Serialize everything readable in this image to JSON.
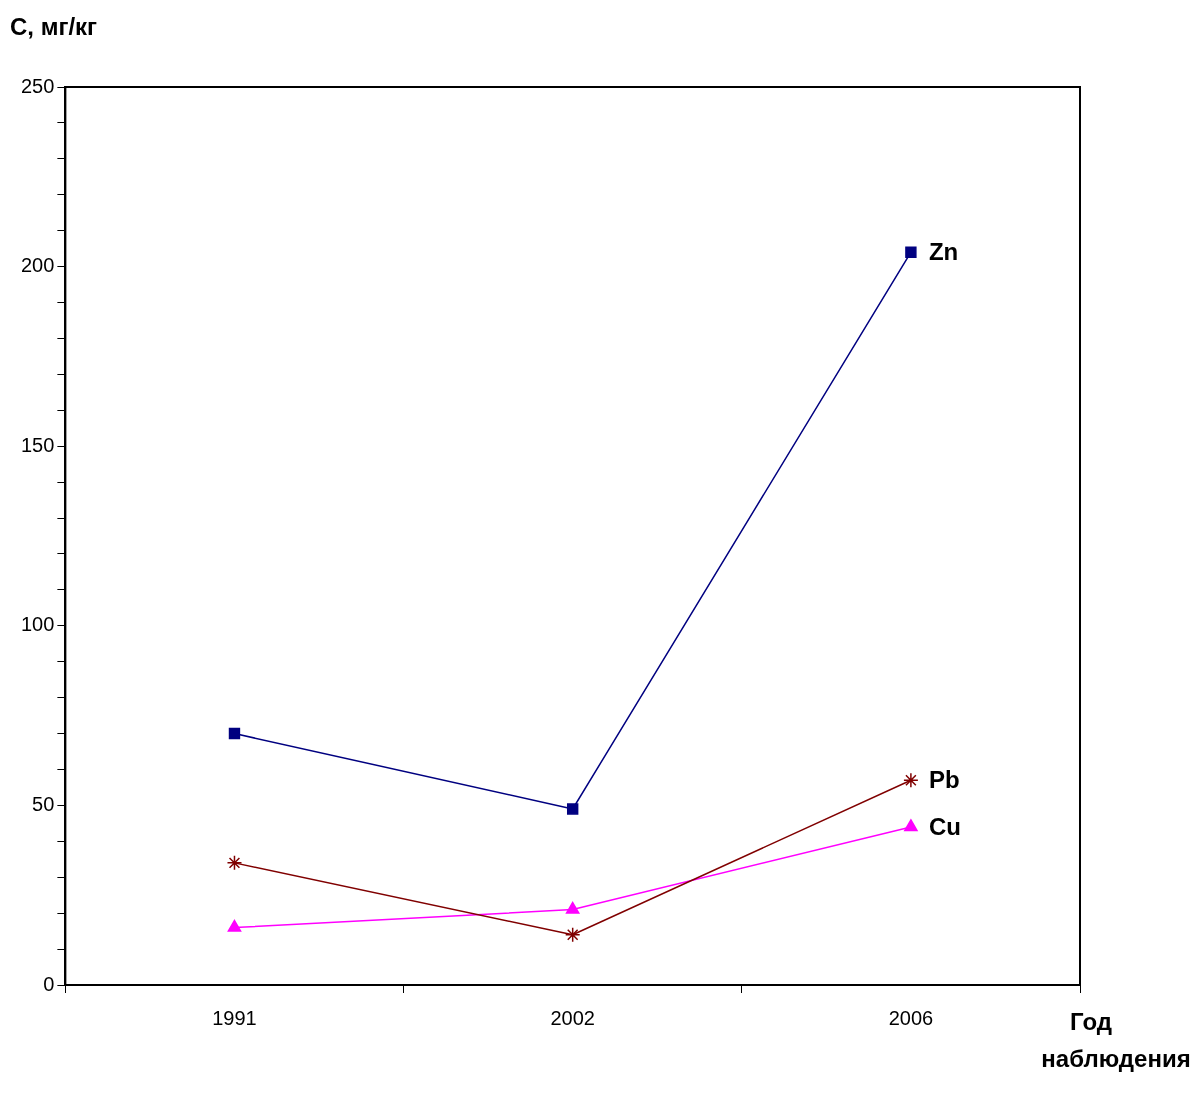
{
  "chart_data": {
    "type": "line",
    "xlabel": "Год наблюдения",
    "ylabel": "C, мг/кг",
    "categories": [
      "1991",
      "2002",
      "2006"
    ],
    "series": [
      {
        "name": "Zn",
        "color": "#000080",
        "marker": "square",
        "values": [
          70,
          49,
          204
        ]
      },
      {
        "name": "Pb",
        "color": "#800000",
        "marker": "cross",
        "values": [
          34,
          14,
          57
        ]
      },
      {
        "name": "Cu",
        "color": "#ff00ff",
        "marker": "triangle",
        "values": [
          16,
          21,
          44
        ]
      }
    ],
    "ylim": [
      0,
      250
    ],
    "yticks": [
      0,
      {
        "value": 10,
        "label": null
      },
      {
        "value": 20,
        "label": null
      },
      {
        "value": 30,
        "label": null
      },
      {
        "value": 40,
        "label": null
      },
      50,
      {
        "value": 60,
        "label": null
      },
      {
        "value": 70,
        "label": null
      },
      {
        "value": 80,
        "label": null
      },
      {
        "value": 90,
        "label": null
      },
      100,
      {
        "value": 110,
        "label": null
      },
      {
        "value": 120,
        "label": null
      },
      {
        "value": 130,
        "label": null
      },
      {
        "value": 140,
        "label": null
      },
      150,
      {
        "value": 160,
        "label": null
      },
      {
        "value": 170,
        "label": null
      },
      {
        "value": 180,
        "label": null
      },
      {
        "value": 190,
        "label": null
      },
      200,
      {
        "value": 210,
        "label": null
      },
      {
        "value": 220,
        "label": null
      },
      {
        "value": 230,
        "label": null
      },
      {
        "value": 240,
        "label": null
      },
      250
    ],
    "grid": false,
    "legend": false,
    "line_style": "solid"
  }
}
